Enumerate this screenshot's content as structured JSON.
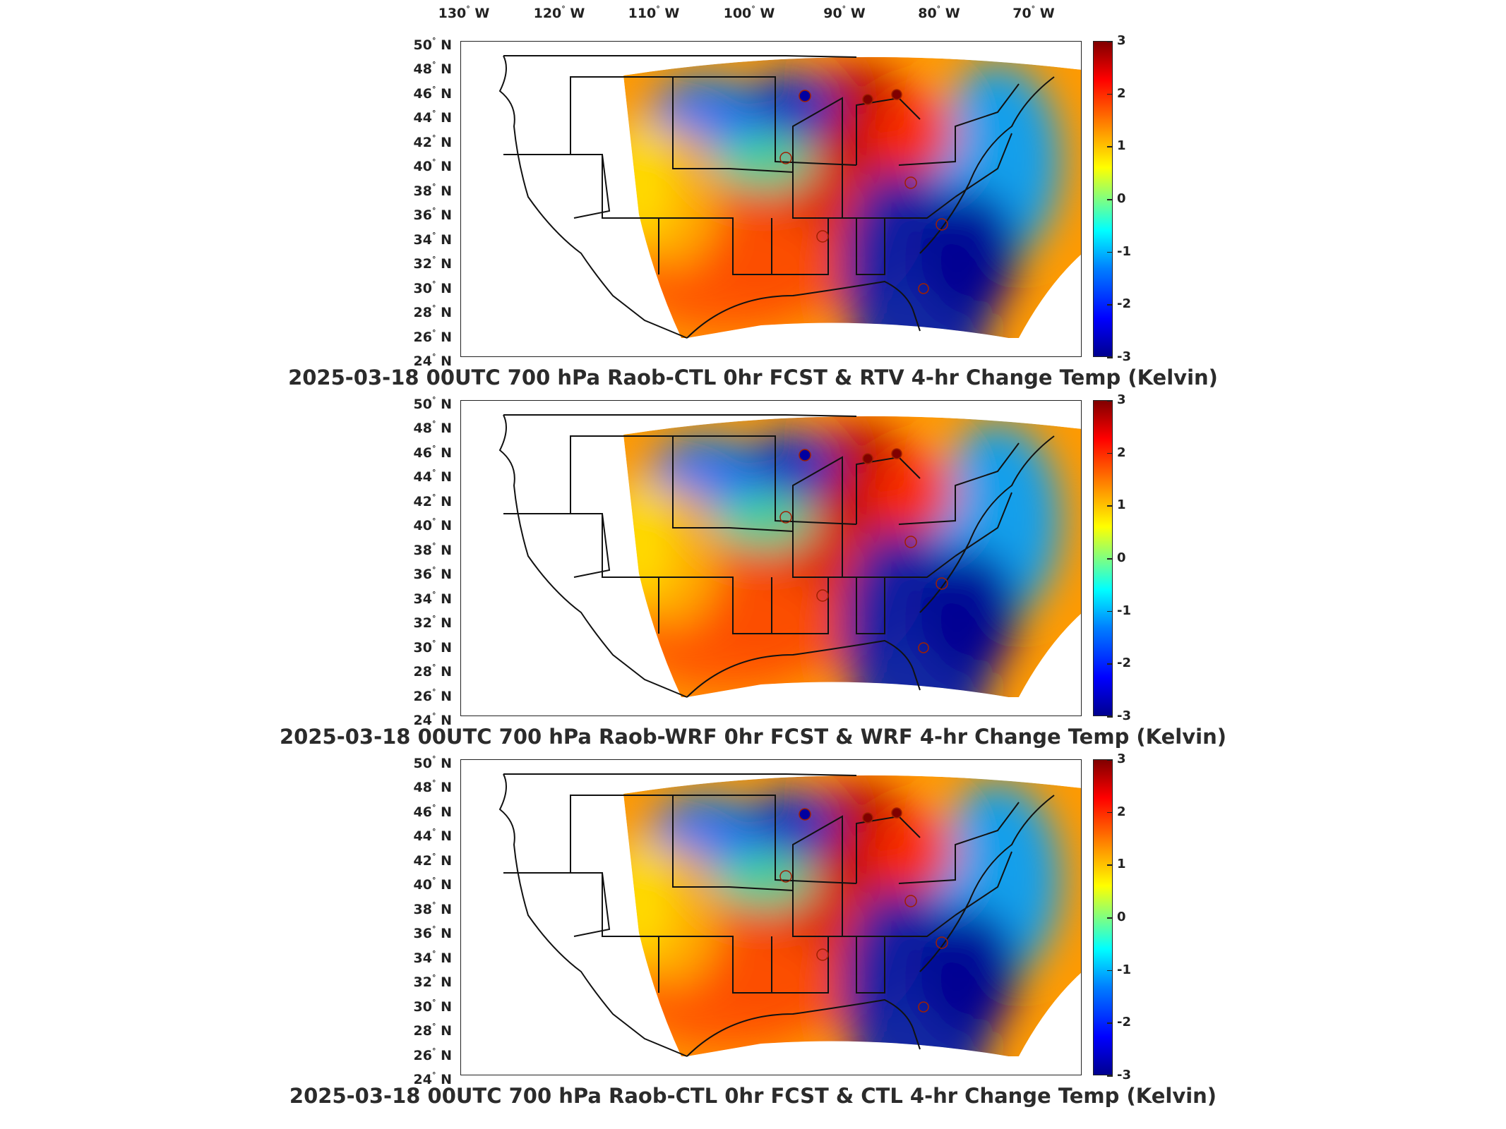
{
  "longitude_labels": [
    {
      "deg": "130",
      "hem": "W"
    },
    {
      "deg": "120",
      "hem": "W"
    },
    {
      "deg": "110",
      "hem": "W"
    },
    {
      "deg": "100",
      "hem": "W"
    },
    {
      "deg": "90",
      "hem": "W"
    },
    {
      "deg": "80",
      "hem": "W"
    },
    {
      "deg": "70",
      "hem": "W"
    }
  ],
  "latitude_labels": [
    {
      "deg": "50",
      "hem": "N"
    },
    {
      "deg": "48",
      "hem": "N"
    },
    {
      "deg": "46",
      "hem": "N"
    },
    {
      "deg": "44",
      "hem": "N"
    },
    {
      "deg": "42",
      "hem": "N"
    },
    {
      "deg": "40",
      "hem": "N"
    },
    {
      "deg": "38",
      "hem": "N"
    },
    {
      "deg": "36",
      "hem": "N"
    },
    {
      "deg": "34",
      "hem": "N"
    },
    {
      "deg": "32",
      "hem": "N"
    },
    {
      "deg": "30",
      "hem": "N"
    },
    {
      "deg": "28",
      "hem": "N"
    },
    {
      "deg": "26",
      "hem": "N"
    },
    {
      "deg": "24",
      "hem": "N"
    }
  ],
  "colorbar": {
    "ticks": [
      "3",
      "2",
      "1",
      "0",
      "-1",
      "-2",
      "-3"
    ],
    "range": [
      -3,
      3
    ],
    "colors": [
      "#00008f",
      "#0000ff",
      "#0080ff",
      "#00ffff",
      "#80ff80",
      "#ffff00",
      "#ff8000",
      "#ff0000",
      "#800000"
    ]
  },
  "panels": [
    {
      "title": "2025-03-18 00UTC 700 hPa Raob-CTL 0hr FCST & RTV 4-hr Change Temp (Kelvin)"
    },
    {
      "title": "2025-03-18 00UTC 700 hPa Raob-WRF 0hr FCST & WRF 4-hr Change Temp (Kelvin)"
    },
    {
      "title": "2025-03-18 00UTC 700 hPa Raob-CTL 0hr FCST & CTL 4-hr Change Temp (Kelvin)"
    }
  ]
}
